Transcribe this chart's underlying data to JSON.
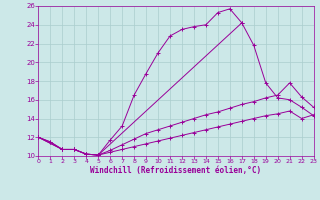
{
  "xlabel": "Windchill (Refroidissement éolien,°C)",
  "bg_color": "#cce8e8",
  "grid_color": "#aacece",
  "line_color": "#990099",
  "xlim": [
    0,
    23
  ],
  "ylim": [
    10,
    26
  ],
  "xticks": [
    0,
    1,
    2,
    3,
    4,
    5,
    6,
    7,
    8,
    9,
    10,
    11,
    12,
    13,
    14,
    15,
    16,
    17,
    18,
    19,
    20,
    21,
    22,
    23
  ],
  "yticks": [
    10,
    12,
    14,
    16,
    18,
    20,
    22,
    24,
    26
  ],
  "curve1_x": [
    0,
    1,
    2,
    3,
    4,
    5,
    6,
    7,
    8,
    9,
    10,
    11,
    12,
    13,
    14,
    15,
    16,
    17
  ],
  "curve1_y": [
    12.0,
    11.5,
    10.7,
    10.7,
    10.2,
    10.1,
    11.7,
    13.2,
    16.5,
    18.8,
    21.0,
    22.8,
    23.5,
    23.8,
    24.0,
    25.3,
    25.7,
    24.2
  ],
  "curve2_x": [
    0,
    1,
    2,
    3,
    4,
    5,
    17,
    18,
    19,
    20,
    21,
    22,
    23
  ],
  "curve2_y": [
    12.0,
    11.5,
    10.7,
    10.7,
    10.2,
    10.1,
    24.2,
    21.8,
    17.8,
    16.2,
    16.0,
    15.2,
    14.3
  ],
  "curve3_x": [
    0,
    2,
    3,
    4,
    5,
    6,
    7,
    8,
    9,
    10,
    11,
    12,
    13,
    14,
    15,
    16,
    17,
    18,
    19,
    20,
    21,
    22,
    23
  ],
  "curve3_y": [
    12.0,
    10.7,
    10.7,
    10.2,
    10.1,
    10.6,
    11.2,
    11.8,
    12.4,
    12.8,
    13.2,
    13.6,
    14.0,
    14.4,
    14.7,
    15.1,
    15.5,
    15.8,
    16.2,
    16.5,
    17.8,
    16.3,
    15.2
  ],
  "curve4_x": [
    0,
    2,
    3,
    4,
    5,
    6,
    7,
    8,
    9,
    10,
    11,
    12,
    13,
    14,
    15,
    16,
    17,
    18,
    19,
    20,
    21,
    22,
    23
  ],
  "curve4_y": [
    12.0,
    10.7,
    10.7,
    10.2,
    10.1,
    10.4,
    10.7,
    11.0,
    11.3,
    11.6,
    11.9,
    12.2,
    12.5,
    12.8,
    13.1,
    13.4,
    13.7,
    14.0,
    14.3,
    14.5,
    14.8,
    14.0,
    14.4
  ]
}
